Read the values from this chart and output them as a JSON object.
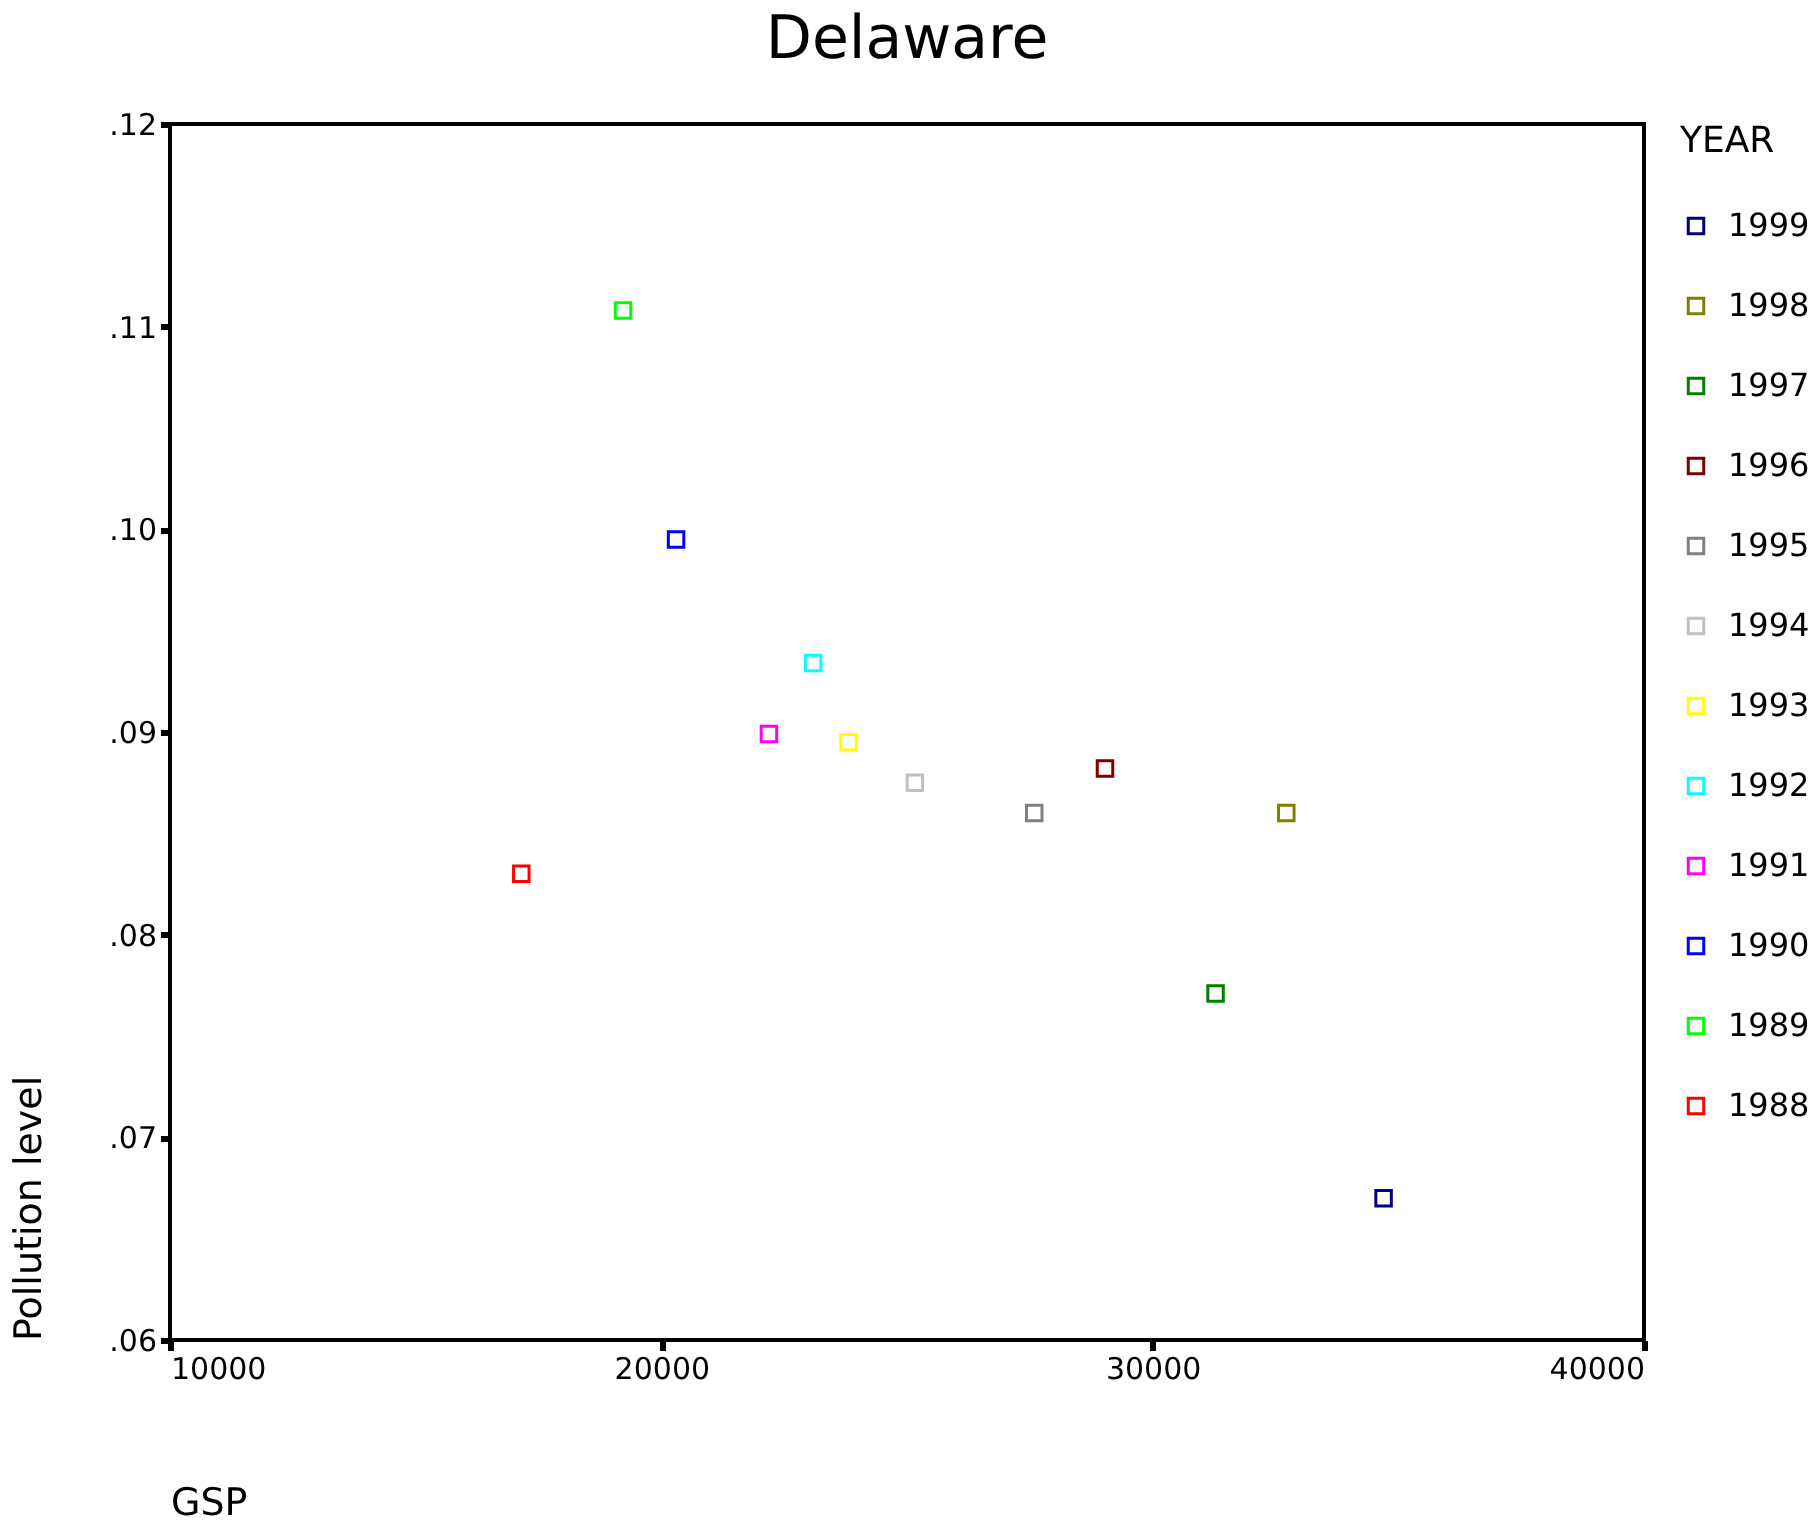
{
  "chart_data": {
    "type": "scatter",
    "title": "Delaware",
    "xlabel": "GSP",
    "ylabel": "Pollution level",
    "legend_title": "YEAR",
    "legend": "right",
    "marker": "square",
    "grid": false,
    "xlim": [
      10000,
      40000
    ],
    "xticks": [
      10000,
      20000,
      30000,
      40000
    ],
    "ylim": [
      0.06,
      0.12
    ],
    "yticks": [
      {
        "value": 0.06,
        "label": ".06"
      },
      {
        "value": 0.07,
        "label": ".07"
      },
      {
        "value": 0.08,
        "label": ".08"
      },
      {
        "value": 0.09,
        "label": ".09"
      },
      {
        "value": 0.1,
        "label": ".10"
      },
      {
        "value": 0.11,
        "label": ".11"
      },
      {
        "value": 0.12,
        "label": ".12"
      }
    ],
    "series": [
      {
        "name": "1999",
        "color": "#000080",
        "x": [
          34700
        ],
        "values": [
          0.067
        ]
      },
      {
        "name": "1998",
        "color": "#808000",
        "x": [
          32720
        ],
        "values": [
          0.086
        ]
      },
      {
        "name": "1997",
        "color": "#008000",
        "x": [
          31280
        ],
        "values": [
          0.0771
        ]
      },
      {
        "name": "1996",
        "color": "#800000",
        "x": [
          29030
        ],
        "values": [
          0.0882
        ]
      },
      {
        "name": "1995",
        "color": "#808080",
        "x": [
          27590
        ],
        "values": [
          0.086
        ]
      },
      {
        "name": "1994",
        "color": "#c0c0c0",
        "x": [
          25160
        ],
        "values": [
          0.0875
        ]
      },
      {
        "name": "1993",
        "color": "#ffff00",
        "x": [
          23810
        ],
        "values": [
          0.0895
        ]
      },
      {
        "name": "1992",
        "color": "#00ffff",
        "x": [
          23090
        ],
        "values": [
          0.0934
        ]
      },
      {
        "name": "1991",
        "color": "#ff00ff",
        "x": [
          22190
        ],
        "values": [
          0.0899
        ]
      },
      {
        "name": "1990",
        "color": "#0000ff",
        "x": [
          20300
        ],
        "values": [
          0.0995
        ]
      },
      {
        "name": "1989",
        "color": "#00ff00",
        "x": [
          19220
        ],
        "values": [
          0.1108
        ]
      },
      {
        "name": "1988",
        "color": "#ff0000",
        "x": [
          17150
        ],
        "values": [
          0.083
        ]
      }
    ]
  }
}
